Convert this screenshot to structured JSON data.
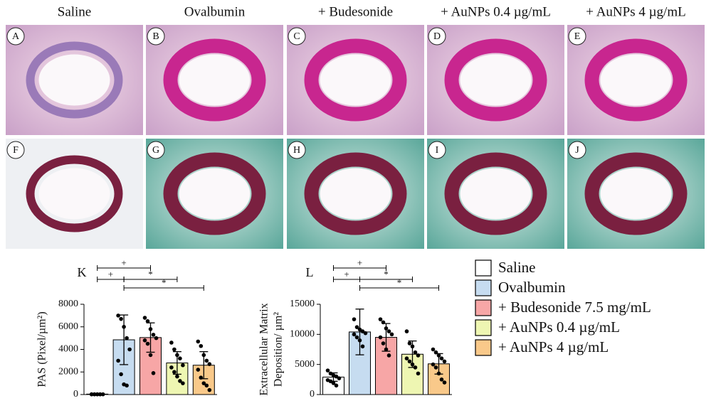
{
  "columns": [
    "Saline",
    "Ovalbumin",
    "+ Budesonide",
    "+ AuNPs 0.4 µg/mL",
    "+ AuNPs 4 µg/mL"
  ],
  "panels": [
    [
      "A",
      "B",
      "C",
      "D",
      "E"
    ],
    [
      "F",
      "G",
      "H",
      "I",
      "J"
    ]
  ],
  "legend": [
    {
      "name": "Saline",
      "color": "#ffffff"
    },
    {
      "name": "Ovalbumin",
      "color": "#c6dcf0"
    },
    {
      "name": "+ Budesonide 7.5 mg/mL",
      "color": "#f7a6a6"
    },
    {
      "name": "+ AuNPs 0.4 µg/mL",
      "color": "#eef6b2"
    },
    {
      "name": "+ AuNPs 4 µg/mL",
      "color": "#f9c98a"
    }
  ],
  "chart_data": [
    {
      "type": "bar",
      "panel_label": "K",
      "ylabel": [
        "PAS (Pixel/µm²)"
      ],
      "categories": [
        null,
        null,
        null,
        null,
        null
      ],
      "values": [
        40,
        4850,
        5050,
        2800,
        2600
      ],
      "errors": [
        30,
        2200,
        1300,
        1000,
        1200
      ],
      "points": [
        [
          20,
          20,
          20,
          20,
          20,
          20,
          20,
          20,
          20
        ],
        [
          7000,
          6700,
          6000,
          5000,
          4000,
          3000,
          1800,
          900,
          800
        ],
        [
          6800,
          6500,
          5800,
          5300,
          5000,
          4800,
          4500,
          3500,
          1900
        ],
        [
          4600,
          4000,
          3500,
          3200,
          2600,
          2400,
          2000,
          1600,
          1200,
          1000
        ],
        [
          4700,
          4300,
          3500,
          3000,
          2700,
          2200,
          1500,
          1000,
          800,
          400
        ]
      ],
      "ylim": [
        0,
        8000
      ],
      "yticks": [
        0,
        2000,
        4000,
        6000,
        8000
      ],
      "annotations": [
        {
          "text": "+",
          "pair": [
            0,
            2
          ]
        },
        {
          "text": "+",
          "pair": [
            0,
            1
          ]
        },
        {
          "text": "*",
          "pair": [
            1,
            3
          ]
        },
        {
          "text": "*",
          "pair": [
            1,
            4
          ]
        }
      ]
    },
    {
      "type": "bar",
      "panel_label": "L",
      "ylabel": [
        "Extracellular Matrix",
        "Deposition/ µm²"
      ],
      "categories": [
        null,
        null,
        null,
        null,
        null
      ],
      "values": [
        2900,
        10400,
        9500,
        6700,
        5100
      ],
      "errors": [
        700,
        3800,
        2300,
        2200,
        1700
      ],
      "points": [
        [
          4000,
          3500,
          3200,
          3000,
          2700,
          2400,
          2200,
          1900,
          1500
        ],
        [
          12500,
          11200,
          10800,
          10500,
          10200,
          10000,
          9500,
          9000,
          8000
        ],
        [
          12500,
          12000,
          11000,
          10500,
          10000,
          9500,
          8500,
          7500,
          6500
        ],
        [
          10500,
          8500,
          8000,
          7000,
          6500,
          6000,
          5500,
          5000,
          4500,
          3500
        ],
        [
          7500,
          7000,
          6500,
          6000,
          5500,
          5000,
          4500,
          3500,
          2500,
          2000
        ]
      ],
      "ylim": [
        0,
        15000
      ],
      "yticks": [
        0,
        5000,
        10000,
        15000
      ],
      "annotations": [
        {
          "text": "+",
          "pair": [
            0,
            2
          ]
        },
        {
          "text": "+",
          "pair": [
            0,
            1
          ]
        },
        {
          "text": "*",
          "pair": [
            1,
            3
          ]
        },
        {
          "text": "*",
          "pair": [
            1,
            4
          ]
        }
      ]
    }
  ]
}
